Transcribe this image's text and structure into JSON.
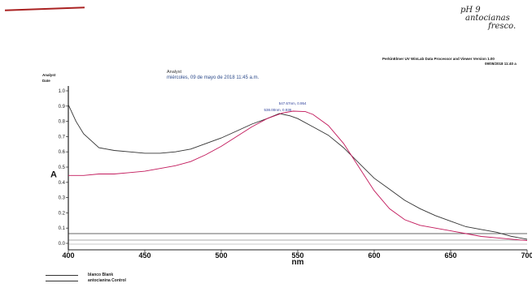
{
  "header": {
    "handwritten_note": [
      "pH 9",
      "antocianas",
      "fresco."
    ],
    "software": "PerkinElmer UV WinLab Data Processor and Viewer Version 1.00",
    "software_date": "09/05/2018 11:40 a",
    "analyst_label": "Analyst",
    "date_label": "Date",
    "analyst_title": "Analyst",
    "analyst_datetime": "miércoles, 09 de mayo de 2018 11:45 a.m."
  },
  "chart_data": {
    "type": "line",
    "xlabel": "nm",
    "ylabel": "A",
    "xlim": [
      400,
      700
    ],
    "ylim": [
      0,
      1.1
    ],
    "x_ticks": [
      400,
      450,
      500,
      550,
      600,
      650,
      700
    ],
    "y_ticks": [
      "1.0",
      "0.9",
      "0.8",
      "0.7",
      "0.6",
      "0.5",
      "0.4",
      "0.3",
      "0.2",
      "0.1",
      "0.0"
    ],
    "grid": false,
    "legend_position": "bottom-left",
    "peak_labels": [
      "547.67nm, 0.954",
      "538.00nm, 0.936"
    ],
    "series": [
      {
        "name": "blanco Blank",
        "color": "#333333",
        "x": [
          400,
          405,
          410,
          420,
          430,
          440,
          450,
          460,
          470,
          480,
          490,
          500,
          510,
          520,
          530,
          538,
          545,
          550,
          560,
          570,
          580,
          590,
          600,
          610,
          620,
          630,
          640,
          650,
          660,
          670,
          680,
          690,
          700
        ],
        "y": [
          1.0,
          0.88,
          0.79,
          0.69,
          0.67,
          0.66,
          0.65,
          0.65,
          0.66,
          0.68,
          0.72,
          0.76,
          0.81,
          0.86,
          0.9,
          0.936,
          0.92,
          0.9,
          0.84,
          0.78,
          0.69,
          0.58,
          0.47,
          0.39,
          0.31,
          0.25,
          0.2,
          0.16,
          0.12,
          0.1,
          0.08,
          0.05,
          0.03
        ]
      },
      {
        "name": "antocianina Control",
        "color": "#c2185b",
        "x": [
          400,
          410,
          420,
          430,
          440,
          450,
          460,
          470,
          480,
          490,
          500,
          510,
          520,
          530,
          540,
          547,
          555,
          560,
          570,
          580,
          590,
          600,
          610,
          620,
          630,
          640,
          650,
          660,
          670,
          680,
          690,
          700
        ],
        "y": [
          0.49,
          0.49,
          0.5,
          0.5,
          0.51,
          0.52,
          0.54,
          0.56,
          0.59,
          0.64,
          0.7,
          0.77,
          0.84,
          0.9,
          0.94,
          0.954,
          0.95,
          0.93,
          0.85,
          0.72,
          0.55,
          0.38,
          0.25,
          0.17,
          0.13,
          0.11,
          0.09,
          0.07,
          0.05,
          0.04,
          0.03,
          0.02
        ]
      }
    ]
  }
}
